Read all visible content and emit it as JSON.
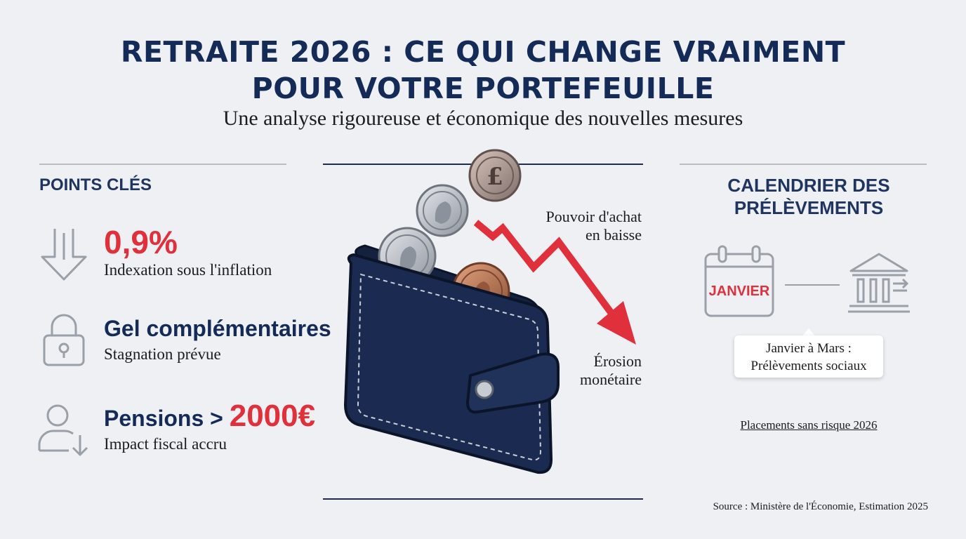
{
  "title_line1": "RETRAITE 2026 : CE QUI CHANGE VRAIMENT",
  "title_line2": "POUR VOTRE PORTEFEUILLE",
  "subtitle": "Une analyse rigoureuse et économique des nouvelles mesures",
  "left": {
    "heading": "POINTS CLÉS",
    "items": [
      {
        "icon": "arrow-down-icon",
        "value": "0,9%",
        "desc": "Indexation sous l'inflation"
      },
      {
        "icon": "padlock-icon",
        "value": "Gel complémentaires",
        "desc": "Stagnation prévue"
      },
      {
        "icon": "person-arrow-down-icon",
        "value_prefix": "Pensions > ",
        "value": "2000€",
        "desc": "Impact fiscal accru"
      }
    ]
  },
  "center": {
    "annotation_top": [
      "Pouvoir d'achat",
      "en baisse"
    ],
    "annotation_bottom": [
      "Érosion",
      "monétaire"
    ]
  },
  "right": {
    "heading_line1": "CALENDRIER DES",
    "heading_line2": "PRÉLÈVEMENTS",
    "calendar_label": "JANVIER",
    "callout_line1": "Janvier à Mars :",
    "callout_line2": "Prélèvements sociaux",
    "link": "Placements sans risque 2026"
  },
  "source": "Source : Ministère de l'Économie, Estimation 2025",
  "colors": {
    "navy": "#142a57",
    "red": "#e0303c",
    "background": "#eef0f3"
  }
}
